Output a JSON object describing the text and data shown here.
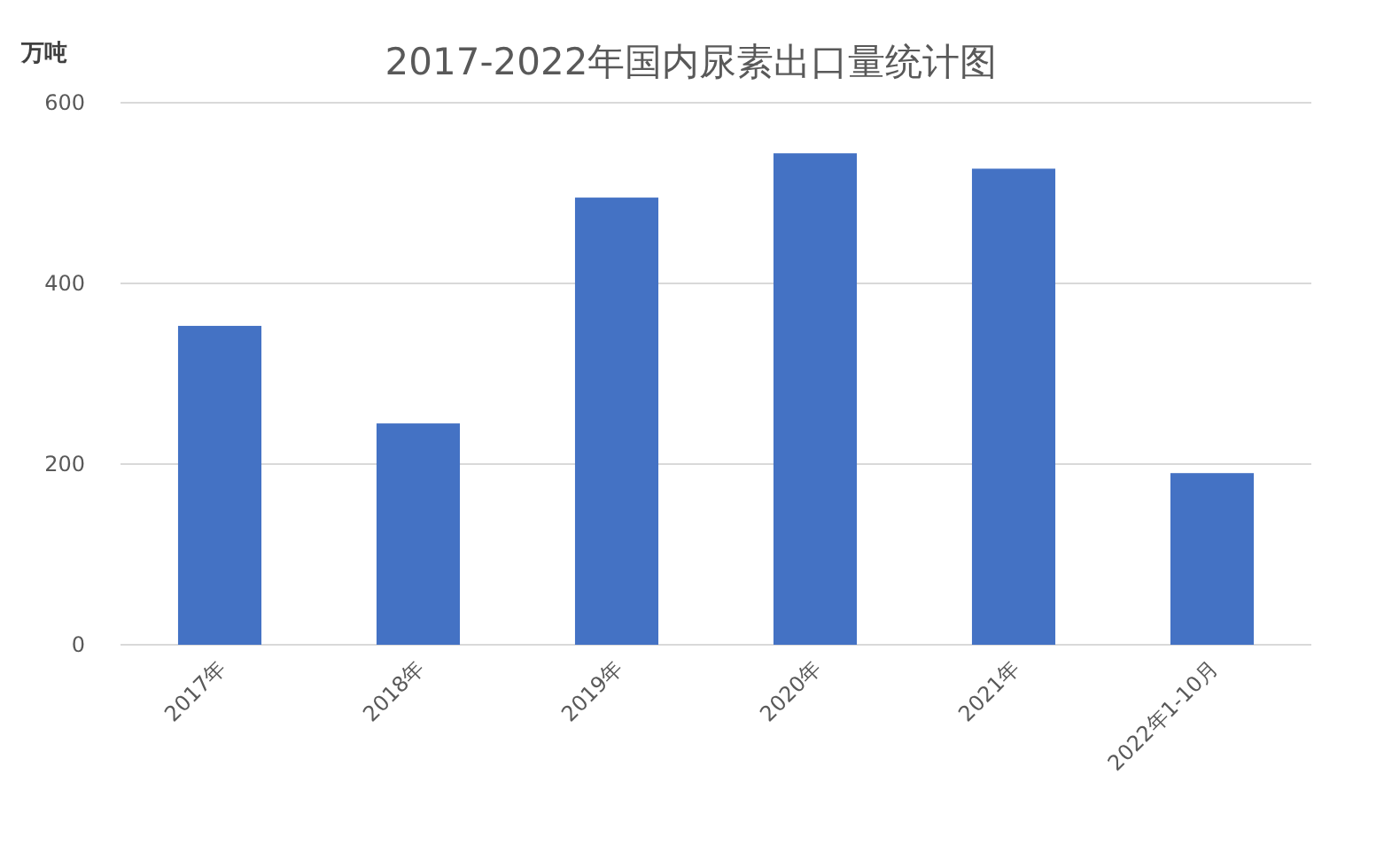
{
  "chart_data": {
    "type": "bar",
    "title": "2017-2022年国内尿素出口量统计图",
    "ylabel": "万吨",
    "categories": [
      "2017年",
      "2018年",
      "2019年",
      "2020年",
      "2021年",
      "2022年1-10月"
    ],
    "values": [
      353,
      245,
      495,
      544,
      527,
      190
    ],
    "color": "#4472c4",
    "ylim": [
      0,
      600
    ],
    "yticks": [
      0,
      200,
      400,
      600
    ],
    "grid": "y"
  }
}
